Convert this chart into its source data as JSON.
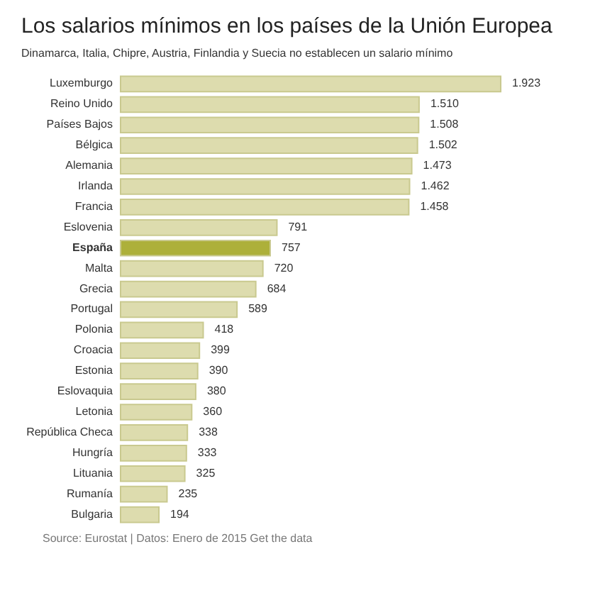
{
  "chart_data": {
    "type": "bar",
    "orientation": "horizontal",
    "title": "Los salarios mínimos en los países de la Unión Europea",
    "subtitle": "Dinamarca, Italia, Chipre, Austria, Finlandia y Suecia no establecen un salario mínimo",
    "categories": [
      "Luxemburgo",
      "Reino Unido",
      "Países Bajos",
      "Bélgica",
      "Alemania",
      "Irlanda",
      "Francia",
      "Eslovenia",
      "España",
      "Malta",
      "Grecia",
      "Portugal",
      "Polonia",
      "Croacia",
      "Estonia",
      "Eslovaquia",
      "Letonia",
      "República Checa",
      "Hungría",
      "Lituania",
      "Rumanía",
      "Bulgaria"
    ],
    "values": [
      1923,
      1510,
      1508,
      1502,
      1473,
      1462,
      1458,
      791,
      757,
      720,
      684,
      589,
      418,
      399,
      390,
      380,
      360,
      338,
      333,
      325,
      235,
      194
    ],
    "value_labels": [
      "1.923",
      "1.510",
      "1.508",
      "1.502",
      "1.473",
      "1.462",
      "1.458",
      "791",
      "757",
      "720",
      "684",
      "589",
      "418",
      "399",
      "390",
      "380",
      "360",
      "338",
      "333",
      "325",
      "235",
      "194"
    ],
    "colors": [
      "#dddcae",
      "#dddcae",
      "#dddcae",
      "#dddcae",
      "#dddcae",
      "#dddcae",
      "#dddcae",
      "#dddcae",
      "#adb03a",
      "#dddcae",
      "#dddcae",
      "#dddcae",
      "#dddcae",
      "#dddcae",
      "#dddcae",
      "#dddcae",
      "#dddcae",
      "#dddcae",
      "#dddcae",
      "#dddcae",
      "#dddcae",
      "#dddcae"
    ],
    "annotations": [
      "Source: Eurostat | Datos: Enero de 2015 Get the data"
    ]
  }
}
